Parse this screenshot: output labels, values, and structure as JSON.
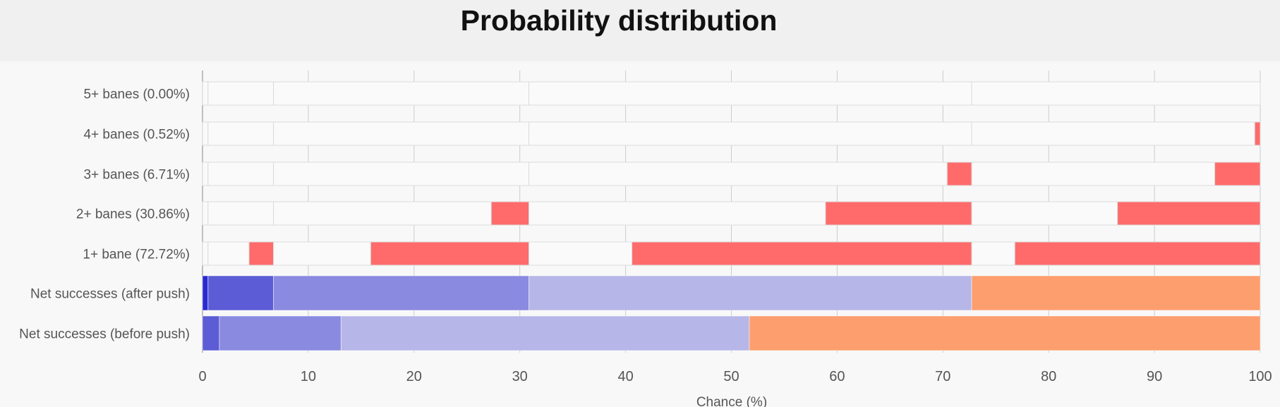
{
  "chart_data": {
    "type": "bar",
    "title": "Probability distribution",
    "xlabel": "Chance (%)",
    "ylabel": "",
    "xlim": [
      0,
      100
    ],
    "xticks": [
      0,
      10,
      20,
      30,
      40,
      50,
      60,
      70,
      80,
      90,
      100
    ],
    "grid": true,
    "stacked": true,
    "rows": [
      {
        "label": "5+ banes (0.00%)",
        "kind": "bane",
        "segments": [
          {
            "start": 0,
            "end": 0.52,
            "filled": false
          },
          {
            "start": 0.52,
            "end": 6.71,
            "filled": false
          },
          {
            "start": 6.71,
            "end": 30.86,
            "filled": false
          },
          {
            "start": 30.86,
            "end": 72.72,
            "filled": false
          },
          {
            "start": 72.72,
            "end": 100,
            "filled": false
          }
        ]
      },
      {
        "label": "4+ banes (0.52%)",
        "kind": "bane",
        "segments": [
          {
            "start": 0,
            "end": 0.52,
            "filled": false
          },
          {
            "start": 0.52,
            "end": 6.71,
            "filled": false
          },
          {
            "start": 6.71,
            "end": 30.86,
            "filled": false
          },
          {
            "start": 30.86,
            "end": 72.72,
            "filled": false
          },
          {
            "start": 72.72,
            "end": 99.48,
            "filled": false
          },
          {
            "start": 99.48,
            "end": 100,
            "filled": true
          }
        ]
      },
      {
        "label": "3+ banes (6.71%)",
        "kind": "bane",
        "segments": [
          {
            "start": 0,
            "end": 0.52,
            "filled": false
          },
          {
            "start": 0.52,
            "end": 6.71,
            "filled": false
          },
          {
            "start": 6.71,
            "end": 30.86,
            "filled": false
          },
          {
            "start": 30.86,
            "end": 70.4,
            "filled": false
          },
          {
            "start": 70.4,
            "end": 72.72,
            "filled": true
          },
          {
            "start": 72.72,
            "end": 95.7,
            "filled": false
          },
          {
            "start": 95.7,
            "end": 100,
            "filled": true
          }
        ]
      },
      {
        "label": "2+ banes (30.86%)",
        "kind": "bane",
        "segments": [
          {
            "start": 0,
            "end": 0.52,
            "filled": false
          },
          {
            "start": 0.52,
            "end": 6.71,
            "filled": false
          },
          {
            "start": 6.71,
            "end": 27.3,
            "filled": false
          },
          {
            "start": 27.3,
            "end": 30.86,
            "filled": true
          },
          {
            "start": 30.86,
            "end": 58.9,
            "filled": false
          },
          {
            "start": 58.9,
            "end": 72.72,
            "filled": true
          },
          {
            "start": 72.72,
            "end": 86.5,
            "filled": false
          },
          {
            "start": 86.5,
            "end": 100,
            "filled": true
          }
        ]
      },
      {
        "label": "1+ bane (72.72%)",
        "kind": "bane",
        "segments": [
          {
            "start": 0,
            "end": 0.52,
            "filled": false
          },
          {
            "start": 0.52,
            "end": 4.4,
            "filled": false
          },
          {
            "start": 4.4,
            "end": 6.71,
            "filled": true
          },
          {
            "start": 6.71,
            "end": 15.9,
            "filled": false
          },
          {
            "start": 15.9,
            "end": 30.86,
            "filled": true
          },
          {
            "start": 30.86,
            "end": 40.6,
            "filled": false
          },
          {
            "start": 40.6,
            "end": 72.72,
            "filled": true
          },
          {
            "start": 72.72,
            "end": 76.8,
            "filled": false
          },
          {
            "start": 76.8,
            "end": 100,
            "filled": true
          }
        ]
      },
      {
        "label": "Net successes (after push)",
        "kind": "net",
        "segments": [
          {
            "start": 0,
            "end": 0.52,
            "color": "#2a2ad0"
          },
          {
            "start": 0.52,
            "end": 6.71,
            "color": "#5c5cd6"
          },
          {
            "start": 6.71,
            "end": 30.86,
            "color": "#8a8ae0"
          },
          {
            "start": 30.86,
            "end": 72.72,
            "color": "#b6b6e8"
          },
          {
            "start": 72.72,
            "end": 100,
            "color": "#fd9e6e"
          }
        ]
      },
      {
        "label": "Net successes (before push)",
        "kind": "net",
        "segments": [
          {
            "start": 0,
            "end": 1.6,
            "color": "#5c5cd6"
          },
          {
            "start": 1.6,
            "end": 13.1,
            "color": "#8a8ae0"
          },
          {
            "start": 13.1,
            "end": 51.7,
            "color": "#b6b6e8"
          },
          {
            "start": 51.7,
            "end": 100,
            "color": "#fd9e6e"
          }
        ]
      }
    ]
  },
  "colors": {
    "bane_filled": "#ff6b6b",
    "bane_empty": "#fafafa",
    "segment_border": "#dcdcdc",
    "grid": "#cccccc",
    "title_band": "#f0f0f0",
    "plot_background": "#f8f8f8"
  }
}
